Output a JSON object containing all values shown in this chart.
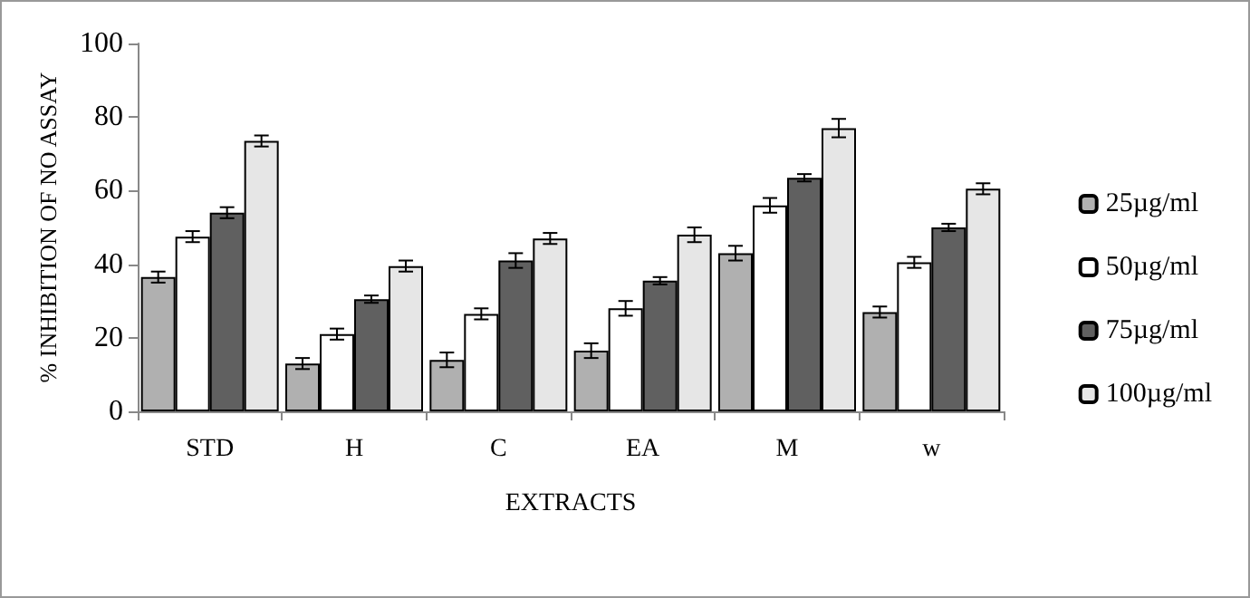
{
  "chart_data": {
    "type": "bar",
    "xlabel": "EXTRACTS",
    "ylabel": "% INHIBITION OF NO ASSAY",
    "categories": [
      "STD",
      "H",
      "C",
      "EA",
      "M",
      "w"
    ],
    "series": [
      {
        "name": "25µg/ml",
        "color": "#b0b0b0",
        "values": [
          36.5,
          13,
          14,
          16.5,
          43,
          27
        ],
        "errors": [
          1.5,
          1.5,
          2,
          2,
          2,
          1.5
        ]
      },
      {
        "name": "50µg/ml",
        "color": "#ffffff",
        "values": [
          47.5,
          21,
          26.5,
          28,
          56,
          40.5
        ],
        "errors": [
          1.5,
          1.5,
          1.5,
          2,
          2,
          1.5
        ]
      },
      {
        "name": "75µg/ml",
        "color": "#606060",
        "values": [
          54,
          30.5,
          41,
          35.5,
          63.5,
          50
        ],
        "errors": [
          1.5,
          1,
          2,
          1,
          1,
          1
        ]
      },
      {
        "name": "100µg/ml",
        "color": "#e6e6e6",
        "values": [
          73.5,
          39.5,
          47,
          48,
          77,
          60.5
        ],
        "errors": [
          1.5,
          1.5,
          1.5,
          2,
          2.5,
          1.5
        ]
      }
    ],
    "ylim": [
      0,
      100
    ],
    "yticks": [
      0,
      20,
      40,
      60,
      80,
      100
    ],
    "grid": false,
    "legend": "right"
  }
}
